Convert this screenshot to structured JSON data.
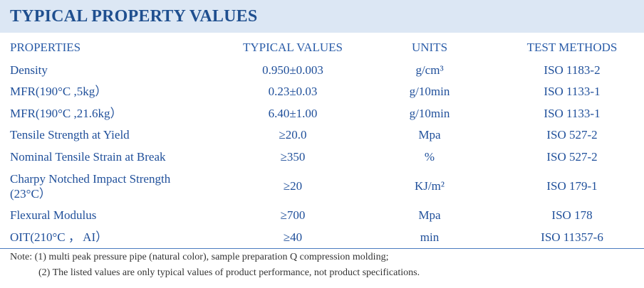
{
  "header": {
    "title": "TYPICAL PROPERTY VALUES"
  },
  "table": {
    "columns": [
      "PROPERTIES",
      "TYPICAL VALUES",
      "UNITS",
      "TEST METHODS"
    ],
    "rows": [
      [
        "Density",
        "0.950±0.003",
        "g/cm³",
        "ISO 1183-2"
      ],
      [
        "MFR(190°C ,5kg）",
        "0.23±0.03",
        "g/10min",
        "ISO 1133-1"
      ],
      [
        "MFR(190°C ,21.6kg）",
        "6.40±1.00",
        "g/10min",
        "ISO 1133-1"
      ],
      [
        "Tensile Strength at Yield",
        "≥20.0",
        "Mpa",
        "ISO 527-2"
      ],
      [
        "Nominal Tensile Strain at Break",
        "≥350",
        "%",
        "ISO 527-2"
      ],
      [
        "Charpy Notched Impact Strength (23°C）",
        "≥20",
        "KJ/m²",
        "ISO 179-1"
      ],
      [
        "Flexural Modulus",
        "≥700",
        "Mpa",
        "ISO 178"
      ],
      [
        "OIT(210°C ， AI）",
        "≥40",
        "min",
        "ISO 11357-6"
      ]
    ]
  },
  "notes": [
    "Note: (1) multi peak pressure pipe (natural color), sample preparation Q compression molding;",
    "(2) The listed values are only typical values of product performance, not product specifications."
  ]
}
